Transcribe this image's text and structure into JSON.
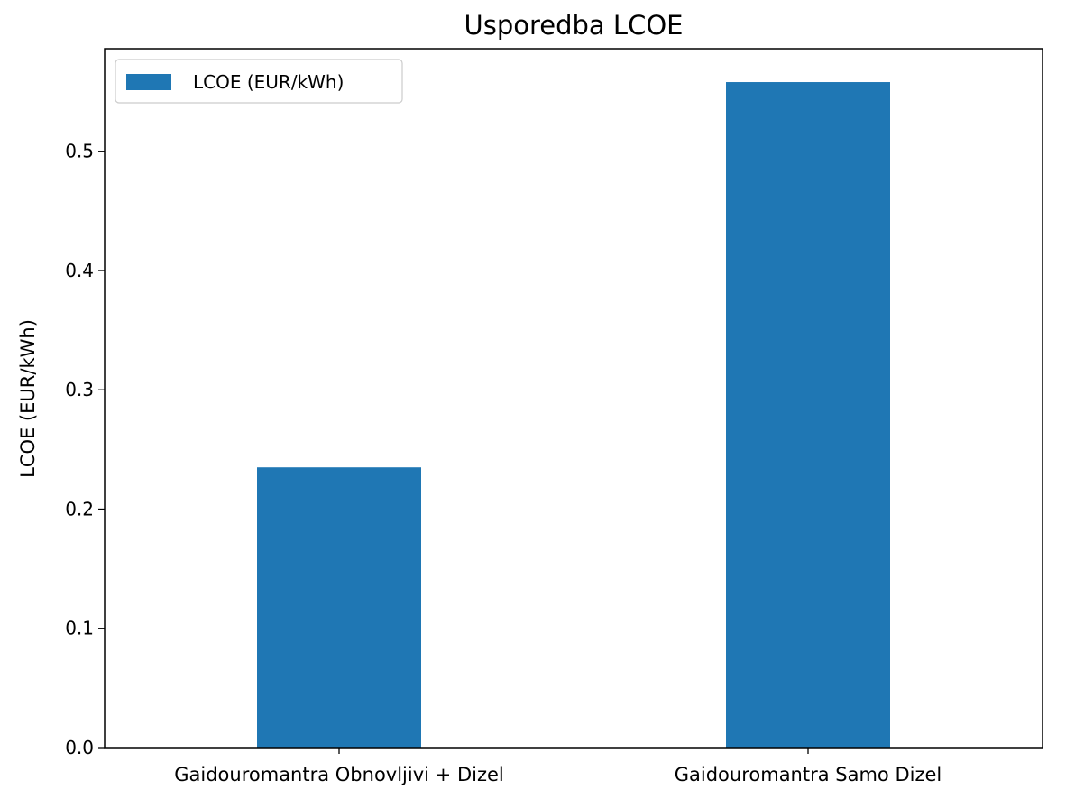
{
  "chart_data": {
    "type": "bar",
    "title": "Usporedba LCOE",
    "xlabel": "",
    "ylabel": "LCOE (EUR/kWh)",
    "categories": [
      "Gaidouromantra Obnovljivi + Dizel",
      "Gaidouromantra Samo Dizel"
    ],
    "series": [
      {
        "name": "LCOE (EUR/kWh)",
        "values": [
          0.235,
          0.558
        ],
        "color": "#1f77b4"
      }
    ],
    "ylim": [
      0,
      0.586
    ],
    "yticks": [
      0.0,
      0.1,
      0.2,
      0.3,
      0.4,
      0.5
    ],
    "grid": false,
    "legend": "top-left"
  }
}
